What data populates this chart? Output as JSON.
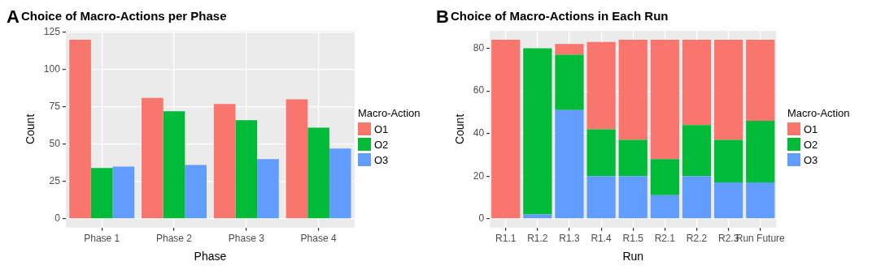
{
  "chart_data": [
    {
      "type": "bar",
      "title": "Choice of Macro-Actions per Phase",
      "xlabel": "Phase",
      "ylabel": "Count",
      "legend_title": "Macro-Action",
      "annotations": [
        "A"
      ],
      "categories": [
        "Phase 1",
        "Phase 2",
        "Phase 3",
        "Phase 4"
      ],
      "series": [
        {
          "name": "O1",
          "color": "#f8766d",
          "values": [
            120,
            81,
            77,
            80
          ]
        },
        {
          "name": "O2",
          "color": "#00ba38",
          "values": [
            34,
            72,
            66,
            61
          ]
        },
        {
          "name": "O3",
          "color": "#619cff",
          "values": [
            35,
            36,
            40,
            47
          ]
        }
      ],
      "ylim": [
        -6,
        126
      ],
      "yticks": [
        0,
        25,
        50,
        75,
        100,
        125
      ],
      "grid": true,
      "legend": "right"
    },
    {
      "type": "bar",
      "title": "Choice of Macro-Actions in Each Run",
      "xlabel": "Run",
      "ylabel": "Count",
      "legend_title": "Macro-Action",
      "annotations": [
        "B"
      ],
      "categories": [
        "R1.1",
        "R1.2",
        "R1.3",
        "R1.4",
        "R1.5",
        "R2.1",
        "R2.2",
        "R2.3",
        "Run Future"
      ],
      "series": [
        {
          "name": "O3",
          "color": "#619cff",
          "values": [
            0,
            2,
            51,
            20,
            20,
            11,
            20,
            17,
            17
          ]
        },
        {
          "name": "O2",
          "color": "#00ba38",
          "values": [
            0,
            78,
            26,
            22,
            17,
            17,
            24,
            20,
            29
          ]
        },
        {
          "name": "O1",
          "color": "#f8766d",
          "values": [
            84,
            0,
            5,
            41,
            47,
            56,
            40,
            47,
            38
          ]
        }
      ],
      "stacked": true,
      "ylim": [
        -4.2,
        88.2
      ],
      "yticks": [
        0,
        20,
        40,
        60,
        80
      ],
      "grid": true,
      "legend": "right"
    }
  ]
}
